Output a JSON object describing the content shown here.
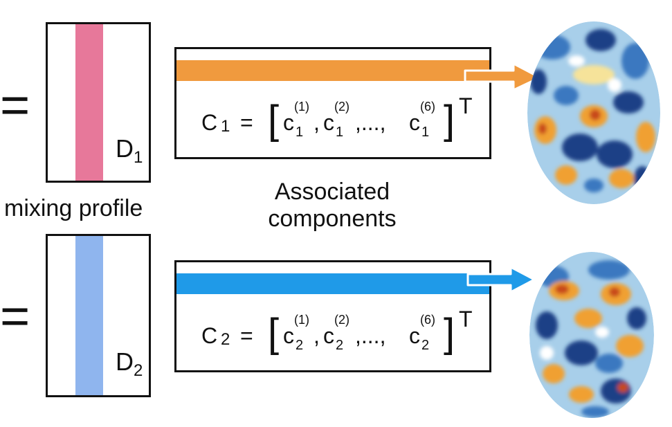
{
  "operators": {
    "equals": "="
  },
  "mixing_profile": {
    "caption": "mixing profile",
    "d1": {
      "symbol": "D",
      "subscript": "1"
    },
    "d2": {
      "symbol": "D",
      "subscript": "2"
    }
  },
  "components": {
    "caption_line1": "Associated",
    "caption_line2": "components",
    "c1": {
      "lhs_symbol": "C",
      "lhs_sub": "1",
      "equals": "=",
      "terms": [
        {
          "base": "c",
          "sub": "1",
          "sup": "(1)"
        },
        {
          "base": "c",
          "sub": "1",
          "sup": "(2)"
        },
        {
          "base": "c",
          "sub": "1",
          "sup": "(6)"
        }
      ],
      "ellipsis": ",...,",
      "comma": ",",
      "transpose": "T"
    },
    "c2": {
      "lhs_symbol": "C",
      "lhs_sub": "2",
      "equals": "=",
      "terms": [
        {
          "base": "c",
          "sub": "2",
          "sup": "(1)"
        },
        {
          "base": "c",
          "sub": "2",
          "sup": "(2)"
        },
        {
          "base": "c",
          "sub": "2",
          "sup": "(6)"
        }
      ],
      "ellipsis": ",...,",
      "comma": ",",
      "transpose": "T"
    }
  },
  "colors": {
    "stripe_d1": "#e7789a",
    "stripe_d2": "#8fb5ee",
    "bar_c1": "#f09a3e",
    "bar_c2": "#1f9ae8",
    "brain_blue_dark": "#1e3f86",
    "brain_blue": "#3a78c0",
    "brain_blue_light": "#a8cfea",
    "brain_orange": "#f0a030",
    "brain_red": "#c84a1c",
    "brain_yellow": "#f6e39a"
  }
}
